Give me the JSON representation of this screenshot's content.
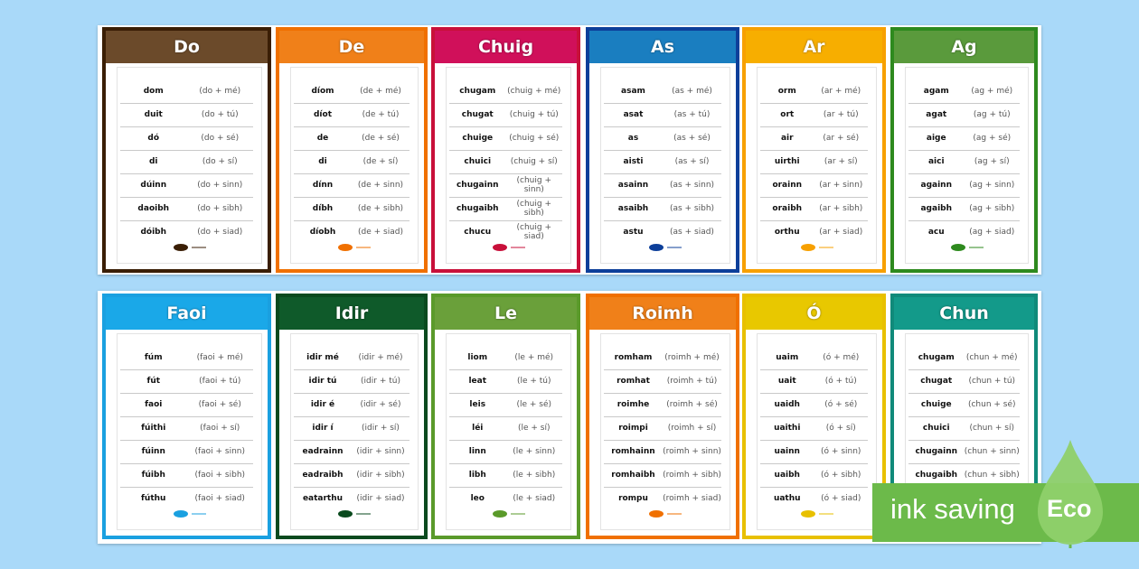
{
  "cards": [
    {
      "title": "Do",
      "color": "#6b4a2a",
      "border": "#3a1e05",
      "rows": [
        [
          "dom",
          "(do + mé)"
        ],
        [
          "duit",
          "(do + tú)"
        ],
        [
          "dó",
          "(do + sé)"
        ],
        [
          "di",
          "(do + sí)"
        ],
        [
          "dúinn",
          "(do + sinn)"
        ],
        [
          "daoibh",
          "(do + sibh)"
        ],
        [
          "dóibh",
          "(do + siad)"
        ]
      ]
    },
    {
      "title": "De",
      "color": "#f08019",
      "border": "#f07000",
      "rows": [
        [
          "díom",
          "(de + mé)"
        ],
        [
          "díot",
          "(de + tú)"
        ],
        [
          "de",
          "(de + sé)"
        ],
        [
          "di",
          "(de + sí)"
        ],
        [
          "dínn",
          "(de + sinn)"
        ],
        [
          "díbh",
          "(de + sibh)"
        ],
        [
          "díobh",
          "(de + siad)"
        ]
      ]
    },
    {
      "title": "Chuig",
      "color": "#d0105a",
      "border": "#c8103a",
      "rows": [
        [
          "chugam",
          "(chuig + mé)"
        ],
        [
          "chugat",
          "(chuig + tú)"
        ],
        [
          "chuige",
          "(chuig + sé)"
        ],
        [
          "chuici",
          "(chuig + sí)"
        ],
        [
          "chugainn",
          "(chuig + sinn)"
        ],
        [
          "chugaibh",
          "(chuig + sibh)"
        ],
        [
          "chucu",
          "(chuig + siad)"
        ]
      ]
    },
    {
      "title": "As",
      "color": "#1a7ec0",
      "border": "#0d3f9a",
      "rows": [
        [
          "asam",
          "(as + mé)"
        ],
        [
          "asat",
          "(as + tú)"
        ],
        [
          "as",
          "(as + sé)"
        ],
        [
          "aisti",
          "(as + sí)"
        ],
        [
          "asainn",
          "(as + sinn)"
        ],
        [
          "asaibh",
          "(as + sibh)"
        ],
        [
          "astu",
          "(as + siad)"
        ]
      ]
    },
    {
      "title": "Ar",
      "color": "#f7ae00",
      "border": "#f7a000",
      "rows": [
        [
          "orm",
          "(ar + mé)"
        ],
        [
          "ort",
          "(ar + tú)"
        ],
        [
          "air",
          "(ar + sé)"
        ],
        [
          "uirthi",
          "(ar + sí)"
        ],
        [
          "orainn",
          "(ar + sinn)"
        ],
        [
          "oraibh",
          "(ar + sibh)"
        ],
        [
          "orthu",
          "(ar + siad)"
        ]
      ]
    },
    {
      "title": "Ag",
      "color": "#5a9a3c",
      "border": "#2e8a1e",
      "rows": [
        [
          "agam",
          "(ag + mé)"
        ],
        [
          "agat",
          "(ag + tú)"
        ],
        [
          "aige",
          "(ag + sé)"
        ],
        [
          "aici",
          "(ag + sí)"
        ],
        [
          "againn",
          "(ag + sinn)"
        ],
        [
          "agaibh",
          "(ag + sibh)"
        ],
        [
          "acu",
          "(ag + siad)"
        ]
      ]
    },
    {
      "title": "Faoi",
      "color": "#1aa8e8",
      "border": "#1aa0e0",
      "rows": [
        [
          "fúm",
          "(faoi + mé)"
        ],
        [
          "fút",
          "(faoi + tú)"
        ],
        [
          "faoi",
          "(faoi + sé)"
        ],
        [
          "fúithi",
          "(faoi + sí)"
        ],
        [
          "fúinn",
          "(faoi + sinn)"
        ],
        [
          "fúibh",
          "(faoi + sibh)"
        ],
        [
          "fúthu",
          "(faoi + siad)"
        ]
      ]
    },
    {
      "title": "Idir",
      "color": "#0f5a2a",
      "border": "#0a4a1e",
      "rows": [
        [
          "idir mé",
          "(idir + mé)"
        ],
        [
          "idir tú",
          "(idir + tú)"
        ],
        [
          "idir é",
          "(idir + sé)"
        ],
        [
          "idir í",
          "(idir + sí)"
        ],
        [
          "eadrainn",
          "(idir + sinn)"
        ],
        [
          "eadraibh",
          "(idir + sibh)"
        ],
        [
          "eatarthu",
          "(idir + siad)"
        ]
      ]
    },
    {
      "title": "Le",
      "color": "#6aa03a",
      "border": "#5a9a2a",
      "rows": [
        [
          "liom",
          "(le + mé)"
        ],
        [
          "leat",
          "(le + tú)"
        ],
        [
          "leis",
          "(le + sé)"
        ],
        [
          "léi",
          "(le + sí)"
        ],
        [
          "linn",
          "(le + sinn)"
        ],
        [
          "libh",
          "(le + sibh)"
        ],
        [
          "leo",
          "(le + siad)"
        ]
      ]
    },
    {
      "title": "Roimh",
      "color": "#f08019",
      "border": "#f07000",
      "rows": [
        [
          "romham",
          "(roimh + mé)"
        ],
        [
          "romhat",
          "(roimh + tú)"
        ],
        [
          "roimhe",
          "(roimh + sé)"
        ],
        [
          "roimpi",
          "(roimh + sí)"
        ],
        [
          "romhainn",
          "(roimh + sinn)"
        ],
        [
          "romhaibh",
          "(roimh + sibh)"
        ],
        [
          "rompu",
          "(roimh + siad)"
        ]
      ]
    },
    {
      "title": "Ó",
      "color": "#e8c800",
      "border": "#e8c000",
      "rows": [
        [
          "uaim",
          "(ó + mé)"
        ],
        [
          "uait",
          "(ó + tú)"
        ],
        [
          "uaidh",
          "(ó + sé)"
        ],
        [
          "uaithi",
          "(ó + sí)"
        ],
        [
          "uainn",
          "(ó + sinn)"
        ],
        [
          "uaibh",
          "(ó + sibh)"
        ],
        [
          "uathu",
          "(ó + siad)"
        ]
      ]
    },
    {
      "title": "Chun",
      "color": "#139a8a",
      "border": "#108a7a",
      "rows": [
        [
          "chugam",
          "(chun + mé)"
        ],
        [
          "chugat",
          "(chun + tú)"
        ],
        [
          "chuige",
          "(chun + sé)"
        ],
        [
          "chuici",
          "(chun + sí)"
        ],
        [
          "chugainn",
          "(chun + sinn)"
        ],
        [
          "chugaibh",
          "(chun + sibh)"
        ]
      ]
    }
  ],
  "badge": {
    "text": "ink saving",
    "label": "Eco",
    "bar_color": "#6cba4a",
    "leaf_color": "#8fd06a"
  }
}
